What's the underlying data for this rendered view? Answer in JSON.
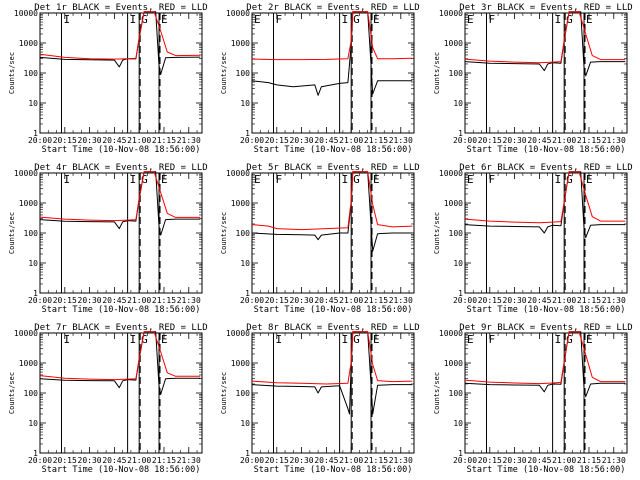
{
  "figure": {
    "ylabel": "Counts/sec",
    "xlabel": "Start Time (10-Nov-08 18:56:00)",
    "x_ticks": [
      "20:00",
      "20:15",
      "20:30",
      "20:45",
      "21:00",
      "21:15",
      "21:30"
    ],
    "y_ticks": [
      "1",
      "10",
      "100",
      "1000",
      "10000"
    ],
    "colors": {
      "events": "#000000",
      "lld": "#ff0000"
    }
  },
  "chart_data": [
    {
      "type": "line",
      "title": "Det 1r BLACK = Events, RED = LLD",
      "markers": [
        {
          "label": "I",
          "x": "20:13"
        },
        {
          "label": "I",
          "x": "20:53"
        },
        {
          "label": "G",
          "x": "21:00"
        },
        {
          "label": "E",
          "x": "21:12"
        }
      ],
      "dashed_at": [
        "21:00",
        "21:12"
      ],
      "xlim": [
        "20:00",
        "21:38"
      ],
      "ylim": [
        1,
        10000
      ],
      "yscale": "log",
      "series": [
        {
          "name": "Events",
          "color": "#000000",
          "x": [
            "20:00",
            "20:15",
            "20:30",
            "20:45",
            "20:48",
            "20:50",
            "20:53",
            "20:58",
            "21:00",
            "21:03",
            "21:10",
            "21:12",
            "21:13",
            "21:16",
            "21:22",
            "21:37"
          ],
          "values": [
            330,
            285,
            275,
            270,
            160,
            270,
            300,
            295,
            1500,
            11000,
            11000,
            180,
            90,
            320,
            330,
            340
          ]
        },
        {
          "name": "LLD",
          "color": "#ff0000",
          "x": [
            "20:00",
            "20:15",
            "20:30",
            "20:45",
            "20:53",
            "20:58",
            "21:00",
            "21:03",
            "21:09",
            "21:13",
            "21:17",
            "21:22",
            "21:37"
          ],
          "values": [
            420,
            330,
            300,
            290,
            300,
            310,
            1500,
            11000,
            11000,
            2500,
            500,
            380,
            390
          ]
        }
      ]
    },
    {
      "type": "line",
      "title": "Det 2r BLACK = Events, RED = LLD",
      "markers": [
        {
          "label": "E",
          "x": "20:00"
        },
        {
          "label": "F",
          "x": "20:13"
        },
        {
          "label": "I",
          "x": "20:53"
        },
        {
          "label": "G",
          "x": "21:00"
        },
        {
          "label": "E",
          "x": "21:12"
        }
      ],
      "dashed_at": [
        "21:00",
        "21:12"
      ],
      "xlim": [
        "20:00",
        "21:38"
      ],
      "ylim": [
        1,
        10000
      ],
      "yscale": "log",
      "series": [
        {
          "name": "Events",
          "color": "#000000",
          "x": [
            "20:00",
            "20:10",
            "20:15",
            "20:25",
            "20:38",
            "20:40",
            "20:42",
            "20:53",
            "20:58",
            "21:00",
            "21:01",
            "21:03",
            "21:10",
            "21:12",
            "21:13",
            "21:16",
            "21:25",
            "21:37"
          ],
          "values": [
            55,
            48,
            40,
            35,
            40,
            18,
            35,
            45,
            48,
            900,
            11000,
            11000,
            11000,
            200,
            20,
            55,
            55,
            55
          ]
        },
        {
          "name": "LLD",
          "color": "#ff0000",
          "x": [
            "20:00",
            "20:15",
            "20:30",
            "20:45",
            "20:58",
            "21:00",
            "21:01",
            "21:10",
            "21:13",
            "21:16",
            "21:25",
            "21:37"
          ],
          "values": [
            290,
            280,
            280,
            285,
            300,
            1200,
            11000,
            11000,
            700,
            300,
            300,
            310
          ]
        }
      ]
    },
    {
      "type": "line",
      "title": "Det 3r BLACK = Events, RED = LLD",
      "markers": [
        {
          "label": "E",
          "x": "20:00"
        },
        {
          "label": "F",
          "x": "20:13"
        },
        {
          "label": "I",
          "x": "20:53"
        },
        {
          "label": "G",
          "x": "21:00"
        },
        {
          "label": "E",
          "x": "21:12"
        }
      ],
      "dashed_at": [
        "21:00",
        "21:12"
      ],
      "xlim": [
        "20:00",
        "21:38"
      ],
      "ylim": [
        1,
        10000
      ],
      "yscale": "log",
      "series": [
        {
          "name": "Events",
          "color": "#000000",
          "x": [
            "20:00",
            "20:15",
            "20:30",
            "20:45",
            "20:48",
            "20:50",
            "20:53",
            "20:58",
            "21:00",
            "21:03",
            "21:10",
            "21:12",
            "21:13",
            "21:16",
            "21:22",
            "21:37"
          ],
          "values": [
            240,
            210,
            205,
            200,
            120,
            200,
            220,
            210,
            1200,
            11000,
            11000,
            160,
            80,
            230,
            240,
            240
          ]
        },
        {
          "name": "LLD",
          "color": "#ff0000",
          "x": [
            "20:00",
            "20:15",
            "20:30",
            "20:45",
            "20:53",
            "20:58",
            "21:00",
            "21:03",
            "21:09",
            "21:13",
            "21:17",
            "21:22",
            "21:37"
          ],
          "values": [
            290,
            250,
            230,
            220,
            230,
            240,
            1200,
            11000,
            11000,
            2000,
            380,
            280,
            280
          ]
        }
      ]
    },
    {
      "type": "line",
      "title": "Det 4r BLACK = Events, RED = LLD",
      "markers": [
        {
          "label": "I",
          "x": "20:13"
        },
        {
          "label": "I",
          "x": "20:53"
        },
        {
          "label": "G",
          "x": "21:00"
        },
        {
          "label": "E",
          "x": "21:12"
        }
      ],
      "dashed_at": [
        "21:00",
        "21:12"
      ],
      "xlim": [
        "20:00",
        "21:38"
      ],
      "ylim": [
        1,
        10000
      ],
      "yscale": "log",
      "series": [
        {
          "name": "Events",
          "color": "#000000",
          "x": [
            "20:00",
            "20:15",
            "20:30",
            "20:45",
            "20:48",
            "20:50",
            "20:53",
            "20:58",
            "21:00",
            "21:03",
            "21:10",
            "21:12",
            "21:13",
            "21:16",
            "21:22",
            "21:37"
          ],
          "values": [
            280,
            245,
            240,
            235,
            140,
            235,
            260,
            250,
            1400,
            11000,
            11000,
            170,
            85,
            280,
            290,
            290
          ]
        },
        {
          "name": "LLD",
          "color": "#ff0000",
          "x": [
            "20:00",
            "20:15",
            "20:30",
            "20:45",
            "20:53",
            "20:58",
            "21:00",
            "21:03",
            "21:09",
            "21:13",
            "21:17",
            "21:22",
            "21:37"
          ],
          "values": [
            340,
            290,
            270,
            260,
            270,
            280,
            1400,
            11000,
            11000,
            2200,
            450,
            330,
            330
          ]
        }
      ]
    },
    {
      "type": "line",
      "title": "Det 5r BLACK = Events, RED = LLD",
      "markers": [
        {
          "label": "E",
          "x": "20:00"
        },
        {
          "label": "F",
          "x": "20:13"
        },
        {
          "label": "I",
          "x": "20:53"
        },
        {
          "label": "G",
          "x": "21:00"
        },
        {
          "label": "E",
          "x": "21:12"
        }
      ],
      "dashed_at": [
        "21:00",
        "21:12"
      ],
      "xlim": [
        "20:00",
        "21:38"
      ],
      "ylim": [
        1,
        10000
      ],
      "yscale": "log",
      "series": [
        {
          "name": "Events",
          "color": "#000000",
          "x": [
            "20:00",
            "20:15",
            "20:30",
            "20:38",
            "20:40",
            "20:42",
            "20:53",
            "20:58",
            "21:00",
            "21:01",
            "21:10",
            "21:12",
            "21:13",
            "21:16",
            "21:25",
            "21:37"
          ],
          "values": [
            100,
            90,
            88,
            85,
            60,
            85,
            100,
            100,
            1000,
            11000,
            11000,
            200,
            25,
            95,
            100,
            100
          ]
        },
        {
          "name": "LLD",
          "color": "#ff0000",
          "x": [
            "20:00",
            "20:10",
            "20:15",
            "20:30",
            "20:45",
            "20:58",
            "21:00",
            "21:01",
            "21:10",
            "21:13",
            "21:16",
            "21:25",
            "21:37"
          ],
          "values": [
            190,
            170,
            140,
            130,
            140,
            150,
            1200,
            11000,
            11000,
            900,
            190,
            160,
            170
          ]
        }
      ]
    },
    {
      "type": "line",
      "title": "Det 6r BLACK = Events, RED = LLD",
      "markers": [
        {
          "label": "E",
          "x": "20:00"
        },
        {
          "label": "F",
          "x": "20:13"
        },
        {
          "label": "I",
          "x": "20:53"
        },
        {
          "label": "G",
          "x": "21:00"
        },
        {
          "label": "E",
          "x": "21:12"
        }
      ],
      "dashed_at": [
        "21:00",
        "21:12"
      ],
      "xlim": [
        "20:00",
        "21:38"
      ],
      "ylim": [
        1,
        10000
      ],
      "yscale": "log",
      "series": [
        {
          "name": "Events",
          "color": "#000000",
          "x": [
            "20:00",
            "20:15",
            "20:30",
            "20:45",
            "20:48",
            "20:50",
            "20:53",
            "20:58",
            "21:00",
            "21:03",
            "21:10",
            "21:12",
            "21:13",
            "21:16",
            "21:22",
            "21:37"
          ],
          "values": [
            190,
            170,
            165,
            160,
            100,
            160,
            180,
            175,
            1100,
            11000,
            11000,
            150,
            70,
            180,
            190,
            190
          ]
        },
        {
          "name": "LLD",
          "color": "#ff0000",
          "x": [
            "20:00",
            "20:15",
            "20:30",
            "20:45",
            "20:53",
            "20:58",
            "21:00",
            "21:03",
            "21:09",
            "21:13",
            "21:17",
            "21:22",
            "21:37"
          ],
          "values": [
            290,
            250,
            230,
            220,
            230,
            240,
            1100,
            11000,
            11000,
            1800,
            350,
            250,
            250
          ]
        }
      ]
    },
    {
      "type": "line",
      "title": "Det 7r BLACK = Events, RED = LLD",
      "markers": [
        {
          "label": "I",
          "x": "20:13"
        },
        {
          "label": "I",
          "x": "20:53"
        },
        {
          "label": "G",
          "x": "21:00"
        },
        {
          "label": "E",
          "x": "21:12"
        }
      ],
      "dashed_at": [
        "21:00",
        "21:12"
      ],
      "xlim": [
        "20:00",
        "21:38"
      ],
      "ylim": [
        1,
        10000
      ],
      "yscale": "log",
      "series": [
        {
          "name": "Events",
          "color": "#000000",
          "x": [
            "20:00",
            "20:15",
            "20:30",
            "20:45",
            "20:48",
            "20:50",
            "20:53",
            "20:58",
            "21:00",
            "21:03",
            "21:10",
            "21:12",
            "21:13",
            "21:16",
            "21:22",
            "21:37"
          ],
          "values": [
            300,
            265,
            260,
            255,
            150,
            255,
            280,
            270,
            1400,
            11000,
            11000,
            175,
            90,
            300,
            310,
            310
          ]
        },
        {
          "name": "LLD",
          "color": "#ff0000",
          "x": [
            "20:00",
            "20:15",
            "20:30",
            "20:45",
            "20:53",
            "20:58",
            "21:00",
            "21:03",
            "21:09",
            "21:13",
            "21:17",
            "21:22",
            "21:37"
          ],
          "values": [
            380,
            310,
            290,
            280,
            290,
            300,
            1400,
            11000,
            11000,
            2300,
            470,
            360,
            360
          ]
        }
      ]
    },
    {
      "type": "line",
      "title": "Det 8r BLACK = Events, RED = LLD",
      "markers": [
        {
          "label": "I",
          "x": "20:13"
        },
        {
          "label": "I",
          "x": "20:53"
        },
        {
          "label": "G",
          "x": "21:00"
        },
        {
          "label": "E",
          "x": "21:12"
        }
      ],
      "dashed_at": [
        "21:00",
        "21:12"
      ],
      "xlim": [
        "20:00",
        "21:38"
      ],
      "ylim": [
        1,
        10000
      ],
      "yscale": "log",
      "series": [
        {
          "name": "Events",
          "color": "#000000",
          "x": [
            "20:00",
            "20:15",
            "20:30",
            "20:38",
            "20:40",
            "20:42",
            "20:53",
            "20:58",
            "20:59",
            "21:00",
            "21:01",
            "21:10",
            "21:12",
            "21:13",
            "21:16",
            "21:25",
            "21:37"
          ],
          "values": [
            190,
            170,
            165,
            160,
            100,
            160,
            175,
            30,
            20,
            900,
            11000,
            11000,
            200,
            20,
            180,
            190,
            190
          ]
        },
        {
          "name": "LLD",
          "color": "#ff0000",
          "x": [
            "20:00",
            "20:15",
            "20:30",
            "20:45",
            "20:58",
            "21:00",
            "21:01",
            "21:10",
            "21:13",
            "21:16",
            "21:25",
            "21:37"
          ],
          "values": [
            250,
            220,
            210,
            200,
            210,
            1100,
            11000,
            11000,
            900,
            260,
            240,
            250
          ]
        }
      ]
    },
    {
      "type": "line",
      "title": "Det 9r BLACK = Events, RED = LLD",
      "markers": [
        {
          "label": "E",
          "x": "20:00"
        },
        {
          "label": "F",
          "x": "20:13"
        },
        {
          "label": "I",
          "x": "20:53"
        },
        {
          "label": "G",
          "x": "21:00"
        },
        {
          "label": "E",
          "x": "21:12"
        }
      ],
      "dashed_at": [
        "21:00",
        "21:12"
      ],
      "xlim": [
        "20:00",
        "21:38"
      ],
      "ylim": [
        1,
        10000
      ],
      "yscale": "log",
      "series": [
        {
          "name": "Events",
          "color": "#000000",
          "x": [
            "20:00",
            "20:15",
            "20:30",
            "20:45",
            "20:48",
            "20:50",
            "20:53",
            "20:58",
            "21:00",
            "21:03",
            "21:10",
            "21:12",
            "21:13",
            "21:16",
            "21:22",
            "21:37"
          ],
          "values": [
            210,
            190,
            185,
            180,
            110,
            180,
            200,
            195,
            1100,
            11000,
            11000,
            150,
            75,
            200,
            210,
            210
          ]
        },
        {
          "name": "LLD",
          "color": "#ff0000",
          "x": [
            "20:00",
            "20:15",
            "20:30",
            "20:45",
            "20:53",
            "20:58",
            "21:00",
            "21:03",
            "21:09",
            "21:13",
            "21:17",
            "21:22",
            "21:37"
          ],
          "values": [
            270,
            230,
            215,
            205,
            215,
            225,
            1100,
            11000,
            11000,
            1900,
            330,
            240,
            240
          ]
        }
      ]
    }
  ]
}
